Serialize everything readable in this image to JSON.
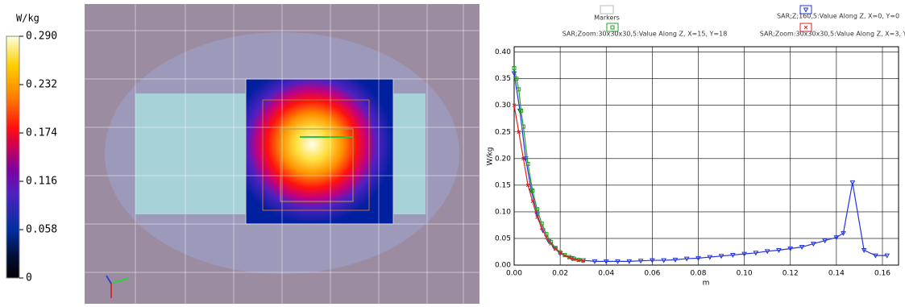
{
  "chart_data": [
    {
      "type": "heatmap",
      "colorbar_label": "W/kg",
      "colorbar_ticks": [
        0,
        0.058,
        0.116,
        0.174,
        0.232,
        {
          "value": 0.29,
          "label": "0.290"
        }
      ],
      "colorbar_lim": [
        0,
        0.29
      ]
    },
    {
      "type": "line",
      "legend_title": "Markers",
      "xlabel": "m",
      "ylabel": "W/kg",
      "grid": true,
      "xlim": [
        0,
        0.167
      ],
      "ylim": [
        0,
        0.41
      ],
      "xticks": [
        {
          "value": 0,
          "label": "0.00"
        },
        {
          "value": 0.02,
          "label": "0.02"
        },
        {
          "value": 0.04,
          "label": "0.04"
        },
        {
          "value": 0.06,
          "label": "0.06"
        },
        {
          "value": 0.08,
          "label": "0.08"
        },
        {
          "value": 0.1,
          "label": "0.10"
        },
        {
          "value": 0.12,
          "label": "0.12"
        },
        {
          "value": 0.14,
          "label": "0.14"
        },
        {
          "value": 0.16,
          "label": "0.16"
        }
      ],
      "yticks": [
        {
          "value": 0,
          "label": "0.00"
        },
        {
          "value": 0.05,
          "label": "0.05"
        },
        {
          "value": 0.1,
          "label": "0.10"
        },
        {
          "value": 0.15,
          "label": "0.15"
        },
        {
          "value": 0.2,
          "label": "0.20"
        },
        {
          "value": 0.25,
          "label": "0.25"
        },
        {
          "value": 0.3,
          "label": "0.30"
        },
        {
          "value": 0.35,
          "label": "0.35"
        },
        {
          "value": 0.4,
          "label": "0.40"
        }
      ],
      "series": [
        {
          "name": "SAR;Z;160,5:Value Along Z, X=0, Y=0",
          "color": "#2233dd",
          "marker": "triangle",
          "x": [
            0,
            0.0025,
            0.005,
            0.0075,
            0.01,
            0.0125,
            0.015,
            0.0175,
            0.02,
            0.025,
            0.03,
            0.035,
            0.04,
            0.045,
            0.05,
            0.055,
            0.06,
            0.065,
            0.07,
            0.075,
            0.08,
            0.085,
            0.09,
            0.095,
            0.1,
            0.105,
            0.11,
            0.115,
            0.12,
            0.125,
            0.13,
            0.135,
            0.14,
            0.143,
            0.147,
            0.152,
            0.157,
            0.162
          ],
          "values": [
            0.36,
            0.29,
            0.2,
            0.14,
            0.095,
            0.065,
            0.045,
            0.032,
            0.022,
            0.013,
            0.009,
            0.007,
            0.007,
            0.007,
            0.007,
            0.008,
            0.009,
            0.009,
            0.01,
            0.012,
            0.013,
            0.015,
            0.017,
            0.019,
            0.021,
            0.023,
            0.026,
            0.028,
            0.031,
            0.034,
            0.04,
            0.046,
            0.052,
            0.06,
            0.155,
            0.028,
            0.018,
            0.018
          ]
        },
        {
          "name": "SAR;Zoom:30x30x30,5:Value Along Z, X=15, Y=18",
          "color": "#22a022",
          "marker": "square",
          "x": [
            0,
            0.001,
            0.002,
            0.003,
            0.004,
            0.006,
            0.008,
            0.01,
            0.012,
            0.014,
            0.016,
            0.018,
            0.02,
            0.022,
            0.024,
            0.026,
            0.028,
            0.03
          ],
          "values": [
            0.37,
            0.35,
            0.33,
            0.29,
            0.26,
            0.19,
            0.14,
            0.105,
            0.078,
            0.058,
            0.043,
            0.032,
            0.024,
            0.019,
            0.015,
            0.012,
            0.01,
            0.009
          ]
        },
        {
          "name": "SAR;Zoom:30x30x30,5:Value Along Z, X=3, Y=3",
          "color": "#dd2222",
          "marker": "x",
          "x": [
            0,
            0.002,
            0.004,
            0.006,
            0.008,
            0.01,
            0.012,
            0.014,
            0.016,
            0.018,
            0.02,
            0.022,
            0.024,
            0.026,
            0.028,
            0.03
          ],
          "values": [
            0.3,
            0.25,
            0.2,
            0.15,
            0.12,
            0.09,
            0.07,
            0.052,
            0.04,
            0.03,
            0.023,
            0.018,
            0.014,
            0.011,
            0.009,
            0.008
          ]
        }
      ]
    }
  ]
}
